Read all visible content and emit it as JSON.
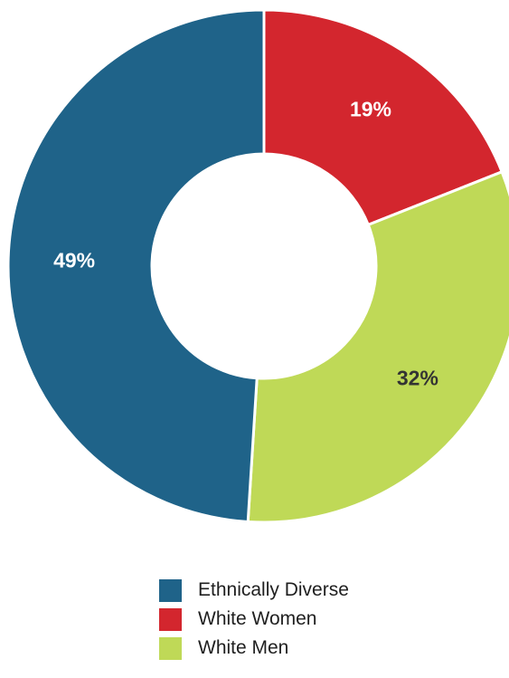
{
  "chart_data": {
    "type": "pie",
    "variant": "donut",
    "title": "",
    "categories": [
      "Ethnically Diverse",
      "White Women",
      "White Men"
    ],
    "values": [
      49,
      19,
      32
    ],
    "labels": [
      "49%",
      "19%",
      "32%"
    ],
    "colors": [
      "#1f6389",
      "#d3262e",
      "#bfd957"
    ],
    "label_colors": [
      "#ffffff",
      "#ffffff",
      "#333333"
    ],
    "legend_position": "bottom",
    "legend": [
      {
        "label": "Ethnically Diverse",
        "color": "#1f6389"
      },
      {
        "label": "White Women",
        "color": "#d3262e"
      },
      {
        "label": "White Men",
        "color": "#bfd957"
      }
    ]
  }
}
